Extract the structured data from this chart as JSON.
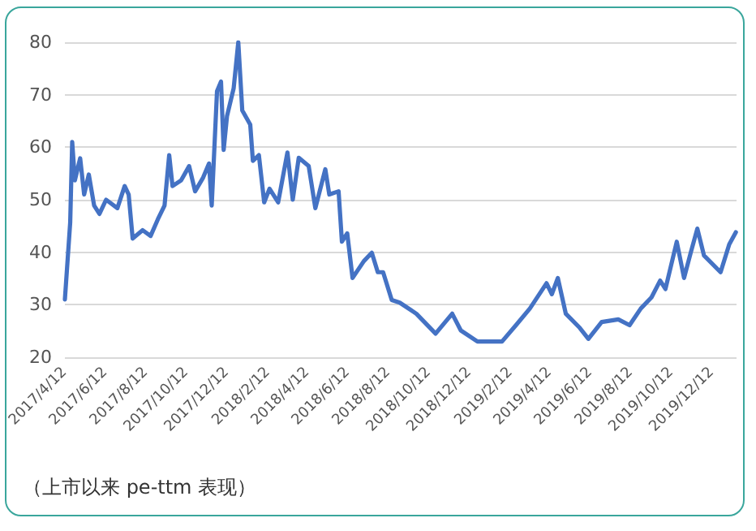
{
  "chart_data": {
    "type": "line",
    "annotations": [
      "（上市以来 pe-ttm 表现）"
    ],
    "x": [
      "2017-04-12",
      "2017-04-20",
      "2017-04-23",
      "2017-04-27",
      "2017-05-05",
      "2017-05-11",
      "2017-05-18",
      "2017-05-26",
      "2017-06-03",
      "2017-06-13",
      "2017-06-30",
      "2017-07-11",
      "2017-07-17",
      "2017-07-23",
      "2017-08-07",
      "2017-08-19",
      "2017-08-30",
      "2017-09-09",
      "2017-09-16",
      "2017-09-21",
      "2017-10-04",
      "2017-10-16",
      "2017-10-25",
      "2017-11-06",
      "2017-11-15",
      "2017-11-19",
      "2017-11-27",
      "2017-12-03",
      "2017-12-07",
      "2017-12-12",
      "2017-12-22",
      "2017-12-29",
      "2018-01-04",
      "2018-01-16",
      "2018-01-20",
      "2018-01-29",
      "2018-02-06",
      "2018-02-14",
      "2018-02-27",
      "2018-03-13",
      "2018-03-21",
      "2018-03-30",
      "2018-04-14",
      "2018-04-24",
      "2018-05-09",
      "2018-05-15",
      "2018-05-29",
      "2018-06-03",
      "2018-06-11",
      "2018-06-19",
      "2018-07-06",
      "2018-07-18",
      "2018-07-27",
      "2018-08-04",
      "2018-08-17",
      "2018-08-29",
      "2018-09-23",
      "2018-10-22",
      "2018-11-16",
      "2018-11-29",
      "2018-12-24",
      "2019-01-30",
      "2019-02-20",
      "2019-03-13",
      "2019-04-07",
      "2019-04-15",
      "2019-04-24",
      "2019-05-06",
      "2019-05-27",
      "2019-06-09",
      "2019-06-29",
      "2019-07-24",
      "2019-08-10",
      "2019-08-27",
      "2019-09-12",
      "2019-09-25",
      "2019-10-03",
      "2019-10-20",
      "2019-10-31",
      "2019-11-10",
      "2019-11-20",
      "2019-11-30",
      "2019-12-25",
      "2020-01-07",
      "2020-01-17"
    ],
    "series": [
      {
        "color": "#4472c4",
        "values": [
          31,
          45.7,
          61,
          53.7,
          57.9,
          51,
          54.8,
          48.9,
          47.3,
          50,
          48.4,
          52.6,
          51,
          42.6,
          44.2,
          43.1,
          46.3,
          48.9,
          58.5,
          52.6,
          53.7,
          56.4,
          51.6,
          54.2,
          56.9,
          48.9,
          70.7,
          72.5,
          59.5,
          65.9,
          71.2,
          80,
          67,
          64.3,
          57.4,
          58.5,
          49.5,
          52.1,
          49.5,
          59,
          50,
          58,
          56.4,
          48.4,
          55.8,
          51,
          51.6,
          42,
          43.6,
          35.1,
          38.3,
          39.9,
          36.2,
          36.2,
          30.9,
          30.4,
          28.3,
          24.5,
          28.3,
          25.1,
          23,
          23,
          26.1,
          29.3,
          34.1,
          32,
          35.1,
          28.3,
          25.6,
          23.5,
          26.7,
          27.2,
          26.1,
          29.3,
          31.4,
          34.6,
          33,
          42,
          35.1,
          39.9,
          44.5,
          39.4,
          36.2,
          41.5,
          43.8
        ]
      }
    ],
    "xlim": [
      "2017-04-12",
      "2020-01-18"
    ],
    "xticks": [
      {
        "value": "2017-04-12",
        "label": "2017/4/12"
      },
      {
        "value": "2017-06-12",
        "label": "2017/6/12"
      },
      {
        "value": "2017-08-12",
        "label": "2017/8/12"
      },
      {
        "value": "2017-10-12",
        "label": "2017/10/12"
      },
      {
        "value": "2017-12-12",
        "label": "2017/12/12"
      },
      {
        "value": "2018-02-12",
        "label": "2018/2/12"
      },
      {
        "value": "2018-04-12",
        "label": "2018/4/12"
      },
      {
        "value": "2018-06-12",
        "label": "2018/6/12"
      },
      {
        "value": "2018-08-12",
        "label": "2018/8/12"
      },
      {
        "value": "2018-10-12",
        "label": "2018/10/12"
      },
      {
        "value": "2018-12-12",
        "label": "2018/12/12"
      },
      {
        "value": "2019-02-12",
        "label": "2019/2/12"
      },
      {
        "value": "2019-04-12",
        "label": "2019/4/12"
      },
      {
        "value": "2019-06-12",
        "label": "2019/6/12"
      },
      {
        "value": "2019-08-12",
        "label": "2019/8/12"
      },
      {
        "value": "2019-10-12",
        "label": "2019/10/12"
      },
      {
        "value": "2019-12-12",
        "label": "2019/12/12"
      }
    ],
    "ylim": [
      20,
      80
    ],
    "yticks": [
      20,
      30,
      40,
      50,
      60,
      70,
      80
    ],
    "grid": "y",
    "marker": "none",
    "line_style": "solid"
  }
}
